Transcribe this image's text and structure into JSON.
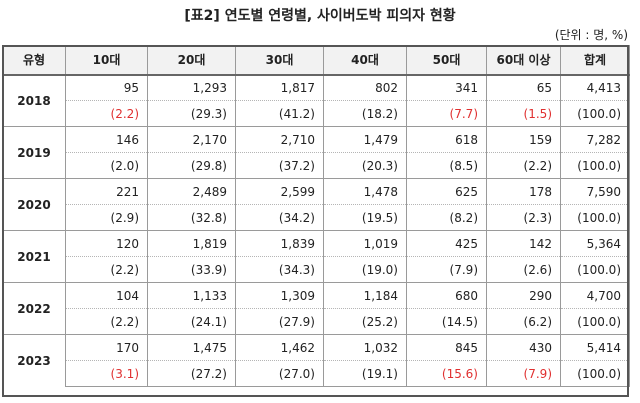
{
  "title": "[표2] 연도별 연령별, 사이버도박 피의자 현황",
  "unit": "(단위 : 명, %)",
  "headers": [
    "유형",
    "10대",
    "20대",
    "30대",
    "40대",
    "50대",
    "60대 이상",
    "합계"
  ],
  "rows": [
    {
      "year": "2018",
      "counts": [
        "95",
        "1,293",
        "1,817",
        "802",
        "341",
        "65",
        "4,413"
      ],
      "pcts": [
        "(2.2)",
        "(29.3)",
        "(41.2)",
        "(18.2)",
        "(7.7)",
        "(1.5)",
        "(100.0)"
      ],
      "highlight": [
        0,
        4,
        5
      ]
    },
    {
      "year": "2019",
      "counts": [
        "146",
        "2,170",
        "2,710",
        "1,479",
        "618",
        "159",
        "7,282"
      ],
      "pcts": [
        "(2.0)",
        "(29.8)",
        "(37.2)",
        "(20.3)",
        "(8.5)",
        "(2.2)",
        "(100.0)"
      ],
      "highlight": []
    },
    {
      "year": "2020",
      "counts": [
        "221",
        "2,489",
        "2,599",
        "1,478",
        "625",
        "178",
        "7,590"
      ],
      "pcts": [
        "(2.9)",
        "(32.8)",
        "(34.2)",
        "(19.5)",
        "(8.2)",
        "(2.3)",
        "(100.0)"
      ],
      "highlight": []
    },
    {
      "year": "2021",
      "counts": [
        "120",
        "1,819",
        "1,839",
        "1,019",
        "425",
        "142",
        "5,364"
      ],
      "pcts": [
        "(2.2)",
        "(33.9)",
        "(34.3)",
        "(19.0)",
        "(7.9)",
        "(2.6)",
        "(100.0)"
      ],
      "highlight": []
    },
    {
      "year": "2022",
      "counts": [
        "104",
        "1,133",
        "1,309",
        "1,184",
        "680",
        "290",
        "4,700"
      ],
      "pcts": [
        "(2.2)",
        "(24.1)",
        "(27.9)",
        "(25.2)",
        "(14.5)",
        "(6.2)",
        "(100.0)"
      ],
      "highlight": []
    },
    {
      "year": "2023",
      "counts": [
        "170",
        "1,475",
        "1,462",
        "1,032",
        "845",
        "430",
        "5,414"
      ],
      "pcts": [
        "(3.1)",
        "(27.2)",
        "(27.0)",
        "(19.1)",
        "(15.6)",
        "(7.9)",
        "(100.0)"
      ],
      "highlight": [
        0,
        4,
        5
      ]
    }
  ],
  "colors": {
    "highlight": "#e03030",
    "header_bg": "#f2f2f2"
  }
}
